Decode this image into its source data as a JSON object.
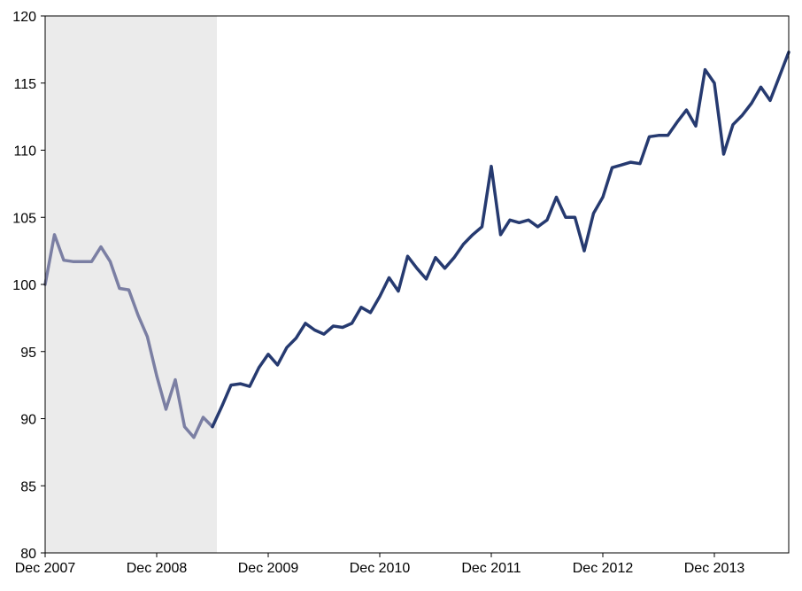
{
  "chart_data": {
    "type": "line",
    "title": "",
    "xlabel": "",
    "ylabel": "",
    "ylim": [
      80,
      120
    ],
    "y_ticks": [
      80,
      85,
      90,
      95,
      100,
      105,
      110,
      115,
      120
    ],
    "x_ticks": [
      {
        "index": 0,
        "label": "Dec 2007"
      },
      {
        "index": 12,
        "label": "Dec 2008"
      },
      {
        "index": 24,
        "label": "Dec 2009"
      },
      {
        "index": 36,
        "label": "Dec 2010"
      },
      {
        "index": 48,
        "label": "Dec 2011"
      },
      {
        "index": 60,
        "label": "Dec 2012"
      },
      {
        "index": 72,
        "label": "Dec 2013"
      }
    ],
    "grid": false,
    "legend": "none",
    "shaded_period": {
      "start_index": 0,
      "end_index": 18,
      "color": "#ebebeb"
    },
    "series": [
      {
        "color": "#7b7fa3",
        "start_index": 0,
        "values": [
          100.0,
          103.7,
          101.8,
          101.7,
          101.7,
          101.7,
          102.8,
          101.7,
          99.7,
          99.6,
          97.7,
          96.1,
          93.2,
          90.7,
          92.9,
          89.4,
          88.6,
          90.1,
          89.4
        ]
      },
      {
        "color": "#263a70",
        "start_index": 18,
        "values": [
          89.4,
          90.9,
          92.5,
          92.6,
          92.4,
          93.8,
          94.8,
          94.0,
          95.3,
          96.0,
          97.1,
          96.6,
          96.3,
          96.9,
          96.8,
          97.1,
          98.3,
          97.9,
          99.1,
          100.5,
          99.5,
          102.1,
          101.2,
          100.4,
          102.0,
          101.2,
          102.0,
          103.0,
          103.7,
          104.3,
          108.8,
          103.7,
          104.8,
          104.6,
          104.8,
          104.3,
          104.8,
          106.5,
          105.0,
          105.0,
          102.5,
          105.3,
          106.5,
          108.7,
          108.9,
          109.1,
          109.0,
          111.0,
          111.1,
          111.1,
          112.1,
          113.0,
          111.8,
          116.0,
          115.0,
          109.7,
          111.9,
          112.6,
          113.5,
          114.7,
          113.7,
          115.5,
          117.3
        ]
      }
    ]
  }
}
